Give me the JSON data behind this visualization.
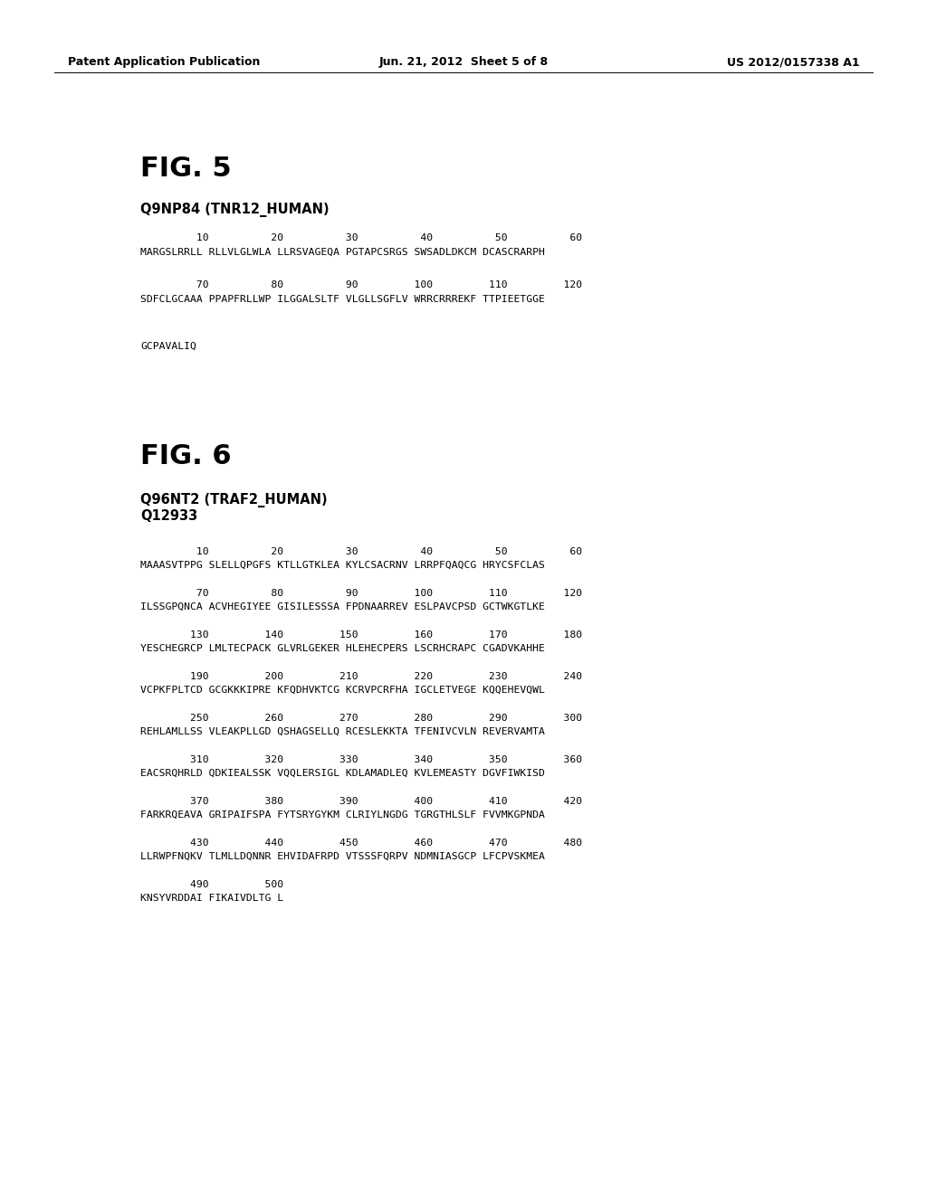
{
  "background_color": "#ffffff",
  "header_left": "Patent Application Publication",
  "header_center": "Jun. 21, 2012  Sheet 5 of 8",
  "header_right": "US 2012/0157338 A1",
  "fig5_title": "FIG. 5",
  "fig5_subtitle": "Q9NP84 (TNR12_HUMAN)",
  "fig5_rows": [
    {
      "numbers": "         10          20          30          40          50          60",
      "sequence": "MARGSLRRLL RLLVLGLWLA LLRSVAGEQA PGTAPCSRGS SWSADLDKCM DCASCRARPH"
    },
    {
      "numbers": "         70          80          90         100         110         120",
      "sequence": "SDFCLGCAAA PPAPFRLLWP ILGGALSLTF VLGLLSGFLV WRRCRRREKF TTPIEETGGE"
    },
    {
      "numbers": "",
      "sequence": "GCPAVALIQ"
    }
  ],
  "fig6_title": "FIG. 6",
  "fig6_subtitle1": "Q96NT2 (TRAF2_HUMAN)",
  "fig6_subtitle2": "Q12933",
  "fig6_rows": [
    {
      "numbers": "         10          20          30          40          50          60",
      "sequence": "MAAASVTPPG SLELLQPGFS KTLLGTKLEA KYLCSACRNV LRRPFQAQCG HRYCSFCLAS"
    },
    {
      "numbers": "         70          80          90         100         110         120",
      "sequence": "ILSSGPQNCA ACVHEGIYEE GISILESSSA FPDNAARREV ESLPAVCPSD GCTWKGTLKE"
    },
    {
      "numbers": "        130         140         150         160         170         180",
      "sequence": "YESCHEGRCP LMLTECPACK GLVRLGEKER HLEHECPERS LSCRHCRAPC CGADVKAHHE"
    },
    {
      "numbers": "        190         200         210         220         230         240",
      "sequence": "VCPKFPLTCD GCGKKKIPRE KFQDHVKTCG KCRVPCRFHA IGCLETVEGE KQQEHEVQWL"
    },
    {
      "numbers": "        250         260         270         280         290         300",
      "sequence": "REHLAMLLSS VLEAKPLLGD QSHAGSELLQ RCESLEKKTA TFENIVCVLN REVERVAMTA"
    },
    {
      "numbers": "        310         320         330         340         350         360",
      "sequence": "EACSRQHRLD QDKIEALSSK VQQLERSIGL KDLAMADLEQ KVLEMEASTY DGVFIWKISD"
    },
    {
      "numbers": "        370         380         390         400         410         420",
      "sequence": "FARKRQEAVA GRIPAIFSPA FYTSRYGYKM CLRIYLNGDG TGRGTHLSLF FVVMKGPNDA"
    },
    {
      "numbers": "        430         440         450         460         470         480",
      "sequence": "LLRWPFNQKV TLMLLDQNNR EHVIDAFRPD VTSSSFQRPV NDMNIASGCP LFCPVSKMEA"
    },
    {
      "numbers": "        490         500",
      "sequence": "KNSYVRDDAI FIKAIVDLTG L"
    }
  ]
}
